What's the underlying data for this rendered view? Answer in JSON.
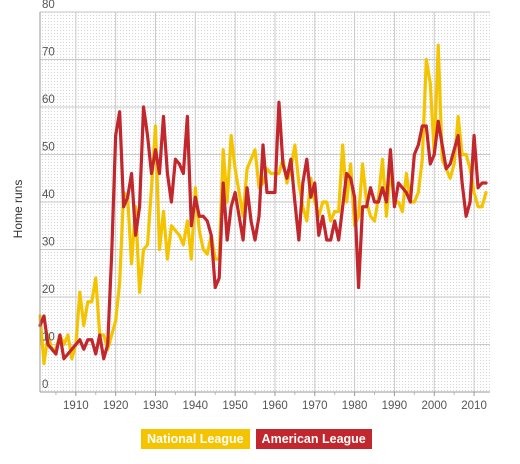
{
  "chart_data": {
    "type": "line",
    "title": "",
    "xlabel": "",
    "ylabel": "Home runs",
    "xlim": [
      1901,
      2014
    ],
    "ylim": [
      0,
      80
    ],
    "x_ticks": [
      1910,
      1920,
      1930,
      1940,
      1950,
      1960,
      1970,
      1980,
      1990,
      2000,
      2010
    ],
    "y_ticks": [
      0,
      10,
      20,
      30,
      40,
      50,
      60,
      70,
      80
    ],
    "grid": true,
    "legend_position": "bottom-center",
    "x_start": 1901,
    "series": [
      {
        "name": "National League",
        "color": "#f5c400",
        "values": [
          16,
          6,
          12,
          9,
          9,
          12,
          10,
          12,
          7,
          10,
          21,
          14,
          19,
          19,
          24,
          12,
          12,
          9,
          12,
          15,
          23,
          42,
          41,
          27,
          39,
          21,
          30,
          31,
          43,
          56,
          30,
          38,
          28,
          35,
          34,
          33,
          31,
          36,
          28,
          43,
          34,
          30,
          29,
          33,
          28,
          28,
          51,
          40,
          54,
          47,
          42,
          37,
          47,
          49,
          51,
          43,
          44,
          47,
          46,
          46,
          46,
          49,
          44,
          47,
          52,
          44,
          39,
          36,
          45,
          40,
          37,
          40,
          40,
          36,
          38,
          38,
          52,
          40,
          48,
          35,
          37,
          48,
          40,
          37,
          36,
          41,
          49,
          37,
          47,
          40,
          40,
          38,
          46,
          40,
          40,
          42,
          49,
          70,
          65,
          50,
          73,
          49,
          47,
          45,
          48,
          58,
          50,
          50,
          47,
          42,
          39,
          39,
          42
        ]
      },
      {
        "name": "American League",
        "color": "#c1272d",
        "values": [
          14,
          16,
          10,
          9,
          8,
          12,
          7,
          8,
          9,
          10,
          11,
          9,
          11,
          11,
          8,
          12,
          7,
          10,
          29,
          54,
          59,
          39,
          41,
          46,
          33,
          39,
          60,
          54,
          46,
          51,
          46,
          58,
          46,
          40,
          49,
          48,
          46,
          58,
          35,
          41,
          37,
          37,
          36,
          33,
          22,
          24,
          44,
          32,
          39,
          42,
          37,
          32,
          43,
          36,
          32,
          37,
          52,
          42,
          42,
          42,
          61,
          48,
          45,
          49,
          40,
          32,
          44,
          49,
          41,
          44,
          33,
          37,
          32,
          32,
          36,
          32,
          39,
          46,
          45,
          41,
          22,
          39,
          39,
          43,
          40,
          40,
          43,
          40,
          51,
          39,
          44,
          43,
          42,
          40,
          50,
          52,
          56,
          56,
          48,
          50,
          57,
          52,
          47,
          48,
          51,
          54,
          44,
          37,
          40,
          54,
          43,
          44,
          44
        ]
      }
    ]
  }
}
